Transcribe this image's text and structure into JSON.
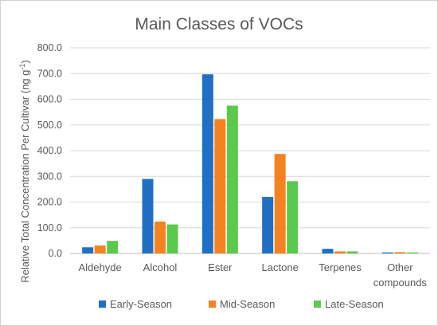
{
  "chart_data": {
    "type": "bar",
    "title": "Main Classes of VOCs",
    "ylabel": "Relative Total Concentration Per Cultivar (ng g",
    "ylabel_sup": "-1",
    "ylabel_end": ")",
    "xlabel": "",
    "categories": [
      [
        "Aldehyde"
      ],
      [
        "Alcohol"
      ],
      [
        "Ester"
      ],
      [
        "Lactone"
      ],
      [
        "Terpenes"
      ],
      [
        "Other",
        "compounds"
      ]
    ],
    "ylim": [
      0,
      800
    ],
    "yticks": [
      "0.0",
      "100.0",
      "200.0",
      "300.0",
      "400.0",
      "500.0",
      "600.0",
      "700.0",
      "800.0"
    ],
    "grid": true,
    "legend_position": "bottom",
    "series": [
      {
        "name": "Early-Season",
        "color": "#1f6fc5",
        "values": [
          24,
          290,
          697,
          220,
          18,
          4
        ]
      },
      {
        "name": "Mid-Season",
        "color": "#f58220",
        "values": [
          31,
          124,
          523,
          387,
          8,
          5
        ]
      },
      {
        "name": "Late-Season",
        "color": "#5bc94b",
        "values": [
          49,
          113,
          575,
          281,
          8,
          4
        ]
      }
    ]
  }
}
